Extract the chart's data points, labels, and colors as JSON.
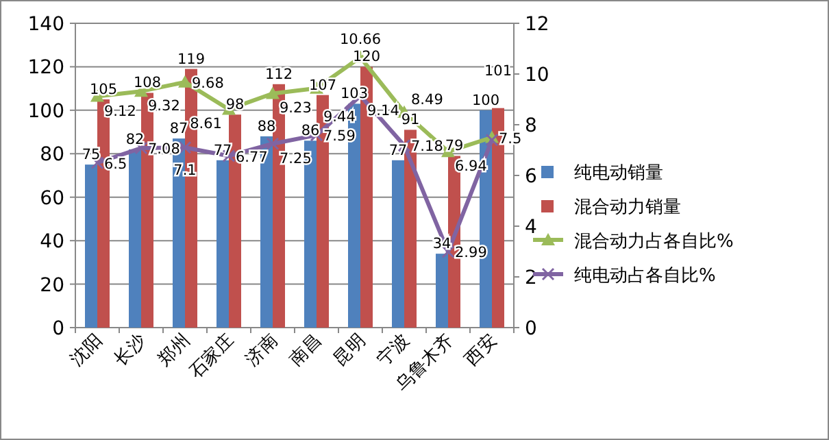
{
  "chart_data": {
    "type": "bar",
    "categories": [
      "沈阳",
      "长沙",
      "郑州",
      "石家庄",
      "济南",
      "南昌",
      "昆明",
      "宁波",
      "乌鲁木齐",
      "西安"
    ],
    "series": [
      {
        "name": "纯电动销量",
        "color": "#4f81bd",
        "values": [
          75,
          82,
          87,
          77,
          88,
          86,
          103,
          77,
          34,
          100
        ]
      },
      {
        "name": "混合动力销量",
        "color": "#c0504d",
        "values": [
          105,
          108,
          119,
          98,
          112,
          107,
          120,
          91,
          79,
          101
        ]
      },
      {
        "name": "混合动力占各自比%",
        "type": "line",
        "axis": "y2",
        "marker": "triangle",
        "color": "#9bbb59",
        "values": [
          9.12,
          9.32,
          9.68,
          8.61,
          9.23,
          9.44,
          10.66,
          8.49,
          6.94,
          7.5
        ]
      },
      {
        "name": "纯电动占各自比%",
        "type": "line",
        "axis": "y2",
        "marker": "cross",
        "color": "#8064a2",
        "values": [
          6.5,
          7.08,
          7.1,
          6.77,
          7.25,
          7.59,
          9.14,
          7.18,
          2.99,
          7.4
        ],
        "value_labels": [
          "6.5",
          "7.08",
          "7.1",
          "6.77",
          "7.25",
          "7.59",
          "9.14",
          "7.18",
          "2.99",
          null
        ]
      }
    ],
    "data_labels": true,
    "ylim": [
      0,
      140
    ],
    "yticks": [
      0,
      20,
      40,
      60,
      80,
      100,
      120,
      140
    ],
    "y2lim": [
      0,
      12
    ],
    "y2ticks": [
      0,
      2,
      4,
      6,
      8,
      10,
      12
    ],
    "grid": "y",
    "legend": "right"
  }
}
